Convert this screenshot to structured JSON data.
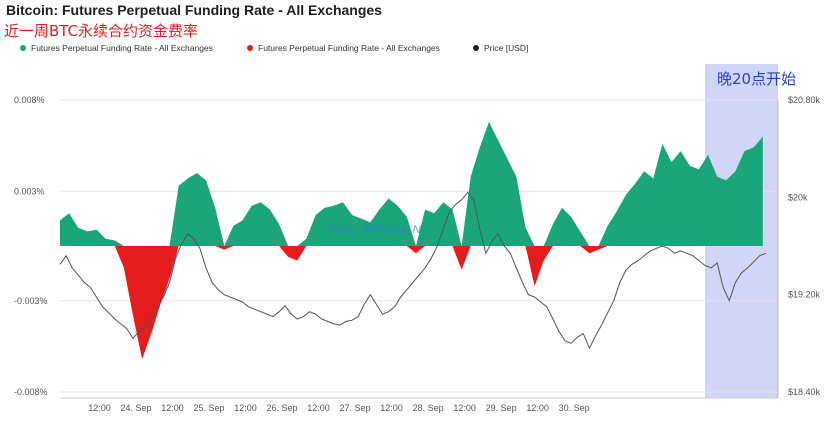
{
  "title": "Bitcoin: Futures Perpetual Funding Rate - All Exchanges",
  "subtitle": "近一周BTC永续合约资金费率",
  "annotation": "晚20点开始",
  "watermark": "Twitter @Phyrex_Ni",
  "colors": {
    "positive": "#1aa57a",
    "negative": "#e51c1c",
    "price": "#555555",
    "highlight": "#c9cff6",
    "annot_text": "#2c3cd6"
  },
  "legend": [
    {
      "label": "Futures Perpetual Funding Rate - All Exchanges",
      "color": "#1aa57a"
    },
    {
      "label": "Futures Perpetual Funding Rate - All Exchanges",
      "color": "#e51c1c"
    },
    {
      "label": "Price [USD]",
      "color": "#222222"
    }
  ],
  "chart_data": {
    "type": "area",
    "x_tick_labels": [
      "12:00",
      "24. Sep",
      "12:00",
      "25. Sep",
      "12:00",
      "26. Sep",
      "12:00",
      "27. Sep",
      "12:00",
      "28. Sep",
      "12:00",
      "29. Sep",
      "12:00",
      "30. Sep"
    ],
    "y_left": {
      "ticks": [
        "0.008%",
        "0.003%",
        "-0.003%",
        "-0.008%"
      ],
      "range": [
        -0.008,
        0.008
      ]
    },
    "y_right": {
      "ticks": [
        "$20.80k",
        "$20k",
        "$19.20k",
        "$18.40k"
      ],
      "range": [
        18400,
        20800
      ]
    },
    "time_range_hours": [
      0,
      188
    ],
    "series": [
      {
        "name": "Futures Perpetual Funding Rate - All Exchanges",
        "unit": "%",
        "points": [
          [
            0,
            0.0014
          ],
          [
            3,
            0.0018
          ],
          [
            6,
            0.001
          ],
          [
            9,
            0.0008
          ],
          [
            12,
            0.0009
          ],
          [
            15,
            0.0004
          ],
          [
            18,
            0.0003
          ],
          [
            21,
            -0.0012
          ],
          [
            24,
            -0.0038
          ],
          [
            27,
            -0.0062
          ],
          [
            30,
            -0.0048
          ],
          [
            33,
            -0.0032
          ],
          [
            36,
            -0.0018
          ],
          [
            39,
            0.0033
          ],
          [
            42,
            0.0037
          ],
          [
            45,
            0.004
          ],
          [
            48,
            0.0036
          ],
          [
            51,
            0.0021
          ],
          [
            54,
            -0.0002
          ],
          [
            57,
            0.0011
          ],
          [
            60,
            0.0014
          ],
          [
            63,
            0.0022
          ],
          [
            66,
            0.0024
          ],
          [
            69,
            0.002
          ],
          [
            72,
            0.0012
          ],
          [
            75,
            -0.0006
          ],
          [
            78,
            -0.0008
          ],
          [
            81,
            0.0004
          ],
          [
            84,
            0.0017
          ],
          [
            87,
            0.0021
          ],
          [
            90,
            0.0022
          ],
          [
            93,
            0.0024
          ],
          [
            96,
            0.0017
          ],
          [
            99,
            0.0015
          ],
          [
            102,
            0.0013
          ],
          [
            105,
            0.002
          ],
          [
            108,
            0.0026
          ],
          [
            111,
            0.0022
          ],
          [
            114,
            0.0016
          ],
          [
            117,
            -0.0004
          ],
          [
            120,
            0.002
          ],
          [
            123,
            0.0018
          ],
          [
            126,
            0.0024
          ],
          [
            129,
            0.002
          ],
          [
            132,
            -0.0013
          ],
          [
            135,
            0.0038
          ],
          [
            138,
            0.0054
          ],
          [
            141,
            0.0068
          ],
          [
            144,
            0.0058
          ],
          [
            147,
            0.0048
          ],
          [
            150,
            0.0038
          ],
          [
            153,
            0.001
          ],
          [
            156,
            -0.0022
          ],
          [
            159,
            -0.0008
          ],
          [
            162,
            0.0012
          ],
          [
            165,
            0.0021
          ],
          [
            168,
            0.0016
          ],
          [
            171,
            0.0008
          ],
          [
            174,
            -0.0004
          ],
          [
            177,
            -0.0002
          ],
          [
            180,
            0.0011
          ],
          [
            183,
            0.0019
          ],
          [
            186,
            0.0028
          ],
          [
            189,
            0.0034
          ],
          [
            192,
            0.0041
          ],
          [
            195,
            0.0037
          ],
          [
            198,
            0.0056
          ],
          [
            201,
            0.0046
          ],
          [
            204,
            0.0052
          ],
          [
            207,
            0.0044
          ],
          [
            210,
            0.0042
          ],
          [
            213,
            0.005
          ],
          [
            216,
            0.0038
          ],
          [
            219,
            0.0036
          ],
          [
            222,
            0.0041
          ],
          [
            225,
            0.0052
          ],
          [
            228,
            0.0054
          ],
          [
            231,
            0.006
          ]
        ]
      },
      {
        "name": "Price [USD]",
        "unit": "USD",
        "points": [
          [
            0,
            19450
          ],
          [
            2,
            19520
          ],
          [
            4,
            19420
          ],
          [
            6,
            19360
          ],
          [
            8,
            19300
          ],
          [
            10,
            19260
          ],
          [
            12,
            19180
          ],
          [
            14,
            19100
          ],
          [
            16,
            19050
          ],
          [
            18,
            19000
          ],
          [
            20,
            18960
          ],
          [
            22,
            18920
          ],
          [
            24,
            18840
          ],
          [
            26,
            18900
          ],
          [
            28,
            18940
          ],
          [
            30,
            19040
          ],
          [
            32,
            19100
          ],
          [
            34,
            19180
          ],
          [
            36,
            19300
          ],
          [
            38,
            19500
          ],
          [
            40,
            19620
          ],
          [
            42,
            19700
          ],
          [
            44,
            19660
          ],
          [
            46,
            19580
          ],
          [
            48,
            19420
          ],
          [
            50,
            19300
          ],
          [
            52,
            19240
          ],
          [
            54,
            19200
          ],
          [
            56,
            19180
          ],
          [
            58,
            19160
          ],
          [
            60,
            19140
          ],
          [
            62,
            19100
          ],
          [
            64,
            19080
          ],
          [
            66,
            19060
          ],
          [
            68,
            19040
          ],
          [
            70,
            19020
          ],
          [
            72,
            19060
          ],
          [
            74,
            19110
          ],
          [
            76,
            19040
          ],
          [
            78,
            19000
          ],
          [
            80,
            19020
          ],
          [
            82,
            19060
          ],
          [
            84,
            19040
          ],
          [
            86,
            19000
          ],
          [
            88,
            18980
          ],
          [
            90,
            18960
          ],
          [
            92,
            18950
          ],
          [
            94,
            18980
          ],
          [
            96,
            18990
          ],
          [
            98,
            19020
          ],
          [
            100,
            19120
          ],
          [
            102,
            19200
          ],
          [
            104,
            19120
          ],
          [
            106,
            19040
          ],
          [
            108,
            19060
          ],
          [
            110,
            19100
          ],
          [
            112,
            19180
          ],
          [
            114,
            19240
          ],
          [
            116,
            19300
          ],
          [
            118,
            19360
          ],
          [
            120,
            19420
          ],
          [
            122,
            19500
          ],
          [
            124,
            19600
          ],
          [
            126,
            19740
          ],
          [
            128,
            19880
          ],
          [
            130,
            19940
          ],
          [
            132,
            19980
          ],
          [
            134,
            20040
          ],
          [
            136,
            19980
          ],
          [
            138,
            19740
          ],
          [
            140,
            19540
          ],
          [
            142,
            19640
          ],
          [
            144,
            19700
          ],
          [
            146,
            19600
          ],
          [
            148,
            19540
          ],
          [
            150,
            19420
          ],
          [
            152,
            19300
          ],
          [
            154,
            19200
          ],
          [
            156,
            19180
          ],
          [
            158,
            19140
          ],
          [
            160,
            19100
          ],
          [
            162,
            19000
          ],
          [
            164,
            18900
          ],
          [
            166,
            18820
          ],
          [
            168,
            18800
          ],
          [
            170,
            18850
          ],
          [
            172,
            18880
          ],
          [
            174,
            18760
          ],
          [
            176,
            18860
          ],
          [
            178,
            18950
          ],
          [
            180,
            19050
          ],
          [
            182,
            19150
          ],
          [
            184,
            19300
          ],
          [
            186,
            19400
          ],
          [
            188,
            19450
          ],
          [
            190,
            19480
          ],
          [
            192,
            19520
          ],
          [
            194,
            19560
          ],
          [
            196,
            19580
          ],
          [
            198,
            19600
          ],
          [
            200,
            19580
          ],
          [
            202,
            19540
          ],
          [
            204,
            19560
          ],
          [
            206,
            19540
          ],
          [
            208,
            19520
          ],
          [
            210,
            19480
          ],
          [
            212,
            19440
          ],
          [
            214,
            19420
          ],
          [
            216,
            19460
          ],
          [
            218,
            19260
          ],
          [
            220,
            19150
          ],
          [
            222,
            19300
          ],
          [
            224,
            19380
          ],
          [
            226,
            19420
          ],
          [
            228,
            19470
          ],
          [
            230,
            19520
          ],
          [
            232,
            19540
          ]
        ]
      }
    ],
    "highlight_window_hours": [
      212,
      236
    ],
    "legend_position": "top",
    "grid": "horizontal"
  }
}
